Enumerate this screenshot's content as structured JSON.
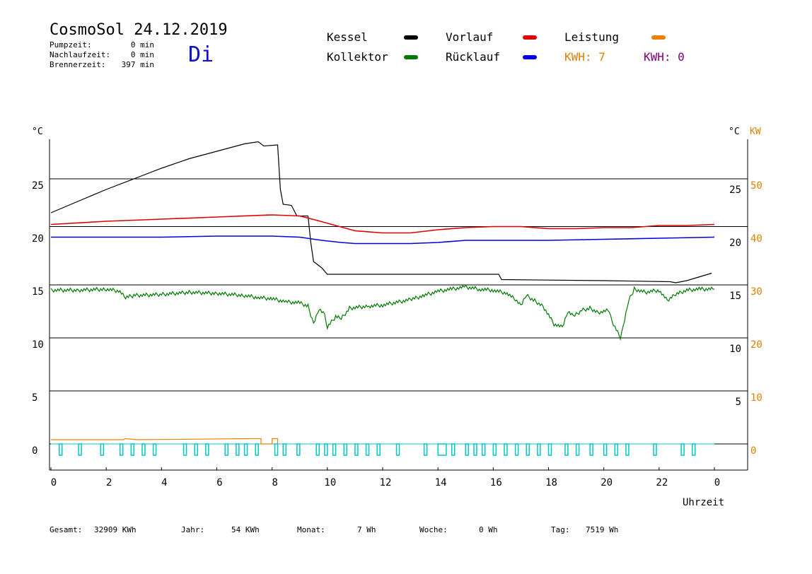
{
  "header": {
    "title": "CosmoSol 24.12.2019",
    "weekday": "Di",
    "stats": [
      {
        "label": "Pumpzeit:",
        "value": "0 min"
      },
      {
        "label": "Nachlaufzeit:",
        "value": "0 min"
      },
      {
        "label": "Brennerzeit:",
        "value": "397 min"
      }
    ]
  },
  "legend": {
    "items": [
      {
        "label": "Kessel",
        "color": "#000000"
      },
      {
        "label": "Vorlauf",
        "color": "#e00000"
      },
      {
        "label": "Leistung",
        "color": "#f08000"
      },
      {
        "label": "Kollektor",
        "color": "#007a00"
      },
      {
        "label": "Rücklauf",
        "color": "#0000e0"
      }
    ],
    "kwh_orange": "KWH: 7",
    "kwh_purple": "KWH: 0",
    "kwh_orange_color": "#e08000",
    "kwh_purple_color": "#800080"
  },
  "footer": {
    "items": [
      {
        "label": "Gesamt:",
        "value": "32909 KWh"
      },
      {
        "label": "Jahr:",
        "value": "54 KWh"
      },
      {
        "label": "Monat:",
        "value": "7 Wh"
      },
      {
        "label": "Woche:",
        "value": "0 Wh"
      },
      {
        "label": "Tag:",
        "value": "7519 Wh"
      }
    ]
  },
  "chart_data": {
    "type": "line",
    "xlabel": "Uhrzeit",
    "x_ticks": [
      "0",
      "2",
      "4",
      "6",
      "8",
      "10",
      "12",
      "14",
      "16",
      "18",
      "20",
      "22",
      "0"
    ],
    "xlim": [
      0,
      24
    ],
    "left_axis": {
      "unit": "°C",
      "ylim": [
        -2,
        29
      ],
      "ticks": [
        "0",
        "5",
        "10",
        "15",
        "20",
        "25"
      ]
    },
    "right_axis_temp": {
      "unit": "°C",
      "ticks": [
        "5",
        "10",
        "15",
        "20",
        "25"
      ]
    },
    "right_axis_power": {
      "unit": "KW",
      "ticks": [
        "0",
        "10",
        "20",
        "30",
        "40",
        "50"
      ],
      "color": "#e08000"
    },
    "hlines": [
      0,
      5,
      10,
      15,
      20.5,
      25
    ],
    "grid_color": "#000000",
    "series": [
      {
        "name": "Kessel",
        "color": "#000000",
        "points": [
          [
            0,
            21.8
          ],
          [
            1,
            22.9
          ],
          [
            2,
            24.0
          ],
          [
            3,
            25.0
          ],
          [
            4,
            26.0
          ],
          [
            5,
            26.9
          ],
          [
            6,
            27.6
          ],
          [
            7,
            28.3
          ],
          [
            7.5,
            28.5
          ],
          [
            7.7,
            28.1
          ],
          [
            8.2,
            28.2
          ],
          [
            8.3,
            24.0
          ],
          [
            8.4,
            22.6
          ],
          [
            8.7,
            22.5
          ],
          [
            8.9,
            21.5
          ],
          [
            9.3,
            21.5
          ],
          [
            9.4,
            19.0
          ],
          [
            9.5,
            17.2
          ],
          [
            9.8,
            16.6
          ],
          [
            10.0,
            16.0
          ],
          [
            13.0,
            16.0
          ],
          [
            16.2,
            16.0
          ],
          [
            16.3,
            15.5
          ],
          [
            20.0,
            15.4
          ],
          [
            22.4,
            15.3
          ],
          [
            22.6,
            15.2
          ],
          [
            23.0,
            15.4
          ],
          [
            23.9,
            16.1
          ]
        ]
      },
      {
        "name": "Vorlauf",
        "color": "#e00000",
        "points": [
          [
            0,
            20.7
          ],
          [
            2,
            21.0
          ],
          [
            4,
            21.2
          ],
          [
            6,
            21.4
          ],
          [
            8,
            21.6
          ],
          [
            9,
            21.5
          ],
          [
            9.6,
            21.1
          ],
          [
            10.3,
            20.6
          ],
          [
            11,
            20.1
          ],
          [
            12,
            19.9
          ],
          [
            13,
            19.9
          ],
          [
            14,
            20.2
          ],
          [
            15,
            20.4
          ],
          [
            16,
            20.5
          ],
          [
            17,
            20.5
          ],
          [
            18,
            20.3
          ],
          [
            19,
            20.3
          ],
          [
            20,
            20.4
          ],
          [
            21,
            20.4
          ],
          [
            22,
            20.6
          ],
          [
            23,
            20.6
          ],
          [
            24,
            20.7
          ]
        ]
      },
      {
        "name": "Rücklauf",
        "color": "#0000e0",
        "points": [
          [
            0,
            19.5
          ],
          [
            2,
            19.5
          ],
          [
            4,
            19.5
          ],
          [
            6,
            19.6
          ],
          [
            8,
            19.6
          ],
          [
            9,
            19.5
          ],
          [
            9.8,
            19.2
          ],
          [
            10.5,
            19.0
          ],
          [
            11,
            18.9
          ],
          [
            13,
            18.9
          ],
          [
            14,
            19.0
          ],
          [
            15,
            19.2
          ],
          [
            16,
            19.2
          ],
          [
            18,
            19.2
          ],
          [
            20,
            19.3
          ],
          [
            22,
            19.4
          ],
          [
            24,
            19.5
          ]
        ]
      },
      {
        "name": "Kollektor",
        "color": "#007a00",
        "points": [
          [
            0,
            14.5
          ],
          [
            1,
            14.5
          ],
          [
            2,
            14.6
          ],
          [
            2.5,
            14.4
          ],
          [
            2.7,
            13.8
          ],
          [
            3,
            14.0
          ],
          [
            4,
            14.1
          ],
          [
            5,
            14.3
          ],
          [
            6,
            14.2
          ],
          [
            7,
            14.0
          ],
          [
            7.5,
            13.8
          ],
          [
            8,
            13.7
          ],
          [
            8.5,
            13.4
          ],
          [
            9,
            13.3
          ],
          [
            9.3,
            13.0
          ],
          [
            9.5,
            11.4
          ],
          [
            9.7,
            12.8
          ],
          [
            9.9,
            12.2
          ],
          [
            10.0,
            11.0
          ],
          [
            10.3,
            12.0
          ],
          [
            10.5,
            11.8
          ],
          [
            10.8,
            12.8
          ],
          [
            11.5,
            13.0
          ],
          [
            12,
            13.1
          ],
          [
            13,
            13.6
          ],
          [
            13.5,
            14.0
          ],
          [
            14,
            14.4
          ],
          [
            14.5,
            14.6
          ],
          [
            15,
            14.8
          ],
          [
            15.5,
            14.6
          ],
          [
            16,
            14.5
          ],
          [
            16.5,
            14.2
          ],
          [
            16.8,
            13.6
          ],
          [
            17.0,
            13.0
          ],
          [
            17.2,
            14.0
          ],
          [
            17.5,
            13.5
          ],
          [
            17.8,
            13.0
          ],
          [
            18.2,
            11.3
          ],
          [
            18.5,
            11.0
          ],
          [
            18.7,
            12.5
          ],
          [
            18.9,
            12.0
          ],
          [
            19.2,
            12.6
          ],
          [
            19.5,
            12.8
          ],
          [
            19.8,
            12.4
          ],
          [
            20.2,
            12.6
          ],
          [
            20.3,
            11.5
          ],
          [
            20.6,
            10.0
          ],
          [
            20.7,
            11.0
          ],
          [
            20.9,
            13.5
          ],
          [
            21.1,
            14.6
          ],
          [
            21.5,
            14.3
          ],
          [
            22,
            14.5
          ],
          [
            22.3,
            13.5
          ],
          [
            22.6,
            14.1
          ],
          [
            23,
            14.5
          ],
          [
            23.5,
            14.6
          ],
          [
            24,
            14.6
          ]
        ]
      },
      {
        "name": "Leistung",
        "color": "#f08000",
        "points": [
          [
            0,
            0.4
          ],
          [
            2.6,
            0.4
          ],
          [
            2.7,
            0.5
          ],
          [
            3.1,
            0.4
          ],
          [
            7.2,
            0.5
          ],
          [
            7.6,
            0.5
          ],
          [
            7.6,
            0
          ],
          [
            8.0,
            0
          ],
          [
            8.0,
            0.5
          ],
          [
            8.2,
            0.5
          ],
          [
            8.2,
            0
          ]
        ]
      }
    ],
    "pump_segments": [
      [
        0.3,
        0.4
      ],
      [
        1.0,
        1.1
      ],
      [
        1.8,
        1.9
      ],
      [
        2.5,
        2.6
      ],
      [
        2.9,
        3.0
      ],
      [
        3.3,
        3.4
      ],
      [
        3.7,
        3.8
      ],
      [
        4.8,
        4.9
      ],
      [
        5.2,
        5.3
      ],
      [
        5.6,
        5.7
      ],
      [
        6.3,
        6.4
      ],
      [
        6.7,
        6.8
      ],
      [
        7.0,
        7.1
      ],
      [
        7.4,
        7.5
      ],
      [
        8.1,
        8.2
      ],
      [
        8.4,
        8.5
      ],
      [
        8.9,
        9.0
      ],
      [
        9.6,
        9.7
      ],
      [
        9.9,
        10.0
      ],
      [
        10.2,
        10.3
      ],
      [
        10.6,
        10.7
      ],
      [
        11.0,
        11.1
      ],
      [
        11.4,
        11.5
      ],
      [
        11.8,
        11.9
      ],
      [
        12.5,
        12.6
      ],
      [
        13.5,
        13.6
      ],
      [
        14.0,
        14.3
      ],
      [
        14.5,
        14.6
      ],
      [
        15.0,
        15.1
      ],
      [
        15.3,
        15.4
      ],
      [
        15.6,
        15.7
      ],
      [
        16.0,
        16.1
      ],
      [
        16.4,
        16.5
      ],
      [
        16.8,
        16.9
      ],
      [
        17.2,
        17.3
      ],
      [
        17.6,
        17.7
      ],
      [
        18.0,
        18.1
      ],
      [
        18.6,
        18.7
      ],
      [
        19.0,
        19.1
      ],
      [
        19.5,
        19.6
      ],
      [
        20.0,
        20.1
      ],
      [
        20.4,
        20.5
      ],
      [
        20.8,
        20.9
      ],
      [
        21.8,
        21.9
      ],
      [
        22.8,
        22.9
      ],
      [
        23.2,
        23.3
      ]
    ],
    "pump_color": "#00c8c8"
  }
}
